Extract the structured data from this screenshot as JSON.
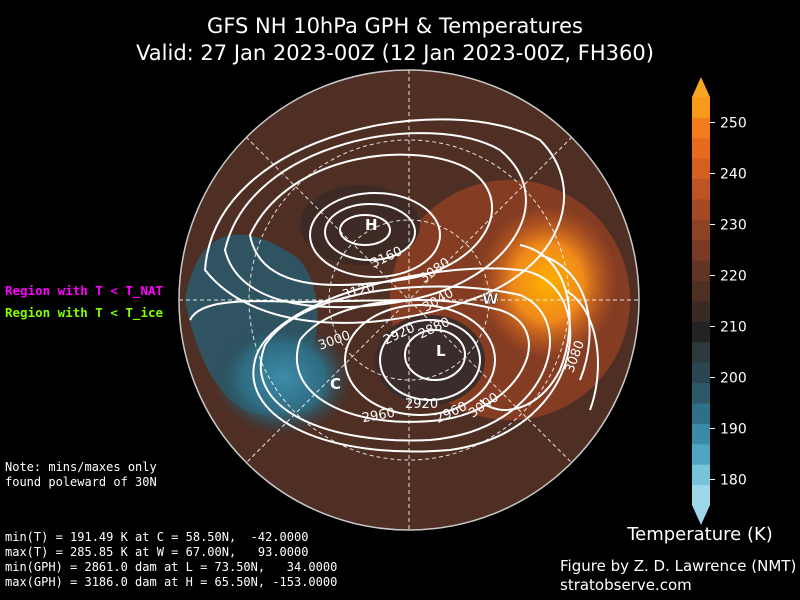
{
  "title": {
    "line1": "GFS NH 10hPa GPH & Temperatures",
    "line2": "Valid: 27 Jan 2023-00Z  (12 Jan 2023-00Z, FH360)"
  },
  "legend": {
    "nat": {
      "text": "Region with T < T_NAT",
      "color": "#ff00ff"
    },
    "ice": {
      "text": "Region with T < T_ice",
      "color": "#7fff00"
    }
  },
  "note": [
    "Note: mins/maxes only",
    "found poleward of 30N"
  ],
  "stats": [
    "min(T) = 191.49 K at C = 58.50N,  -42.0000",
    "max(T) = 285.85 K at W = 67.00N,   93.0000",
    "min(GPH) = 2861.0 dam at L = 73.50N,   34.0000",
    "max(GPH) = 3186.0 dam at H = 65.50N, -153.0000"
  ],
  "colorbar": {
    "label": "Temperature (K)",
    "ticks": [
      "180",
      "190",
      "200",
      "210",
      "220",
      "230",
      "240",
      "250"
    ],
    "min": 175,
    "max": 255,
    "colors": [
      "#9fd7ea",
      "#77c3db",
      "#4ea6c3",
      "#3b8aa6",
      "#2f6f87",
      "#2c5868",
      "#2b4650",
      "#2c3a3e",
      "#232323",
      "#3a2a25",
      "#4e2f24",
      "#633426",
      "#7a3a25",
      "#8e4225",
      "#a54a24",
      "#bd5423",
      "#d55f21",
      "#e96a1e",
      "#f57c1c",
      "#f99a1a"
    ],
    "arrow_top_color": "#f5a623",
    "arrow_bottom_color": "#9fd7ea"
  },
  "map": {
    "markers": [
      {
        "id": "H",
        "text": "H"
      },
      {
        "id": "L",
        "text": "L"
      },
      {
        "id": "W",
        "text": "W"
      },
      {
        "id": "C",
        "text": "C"
      }
    ],
    "contour_labels": [
      "3160",
      "3120",
      "3080",
      "3040",
      "3000",
      "2920",
      "2880",
      "2960",
      "2920",
      "2960",
      "3000",
      "3080"
    ]
  },
  "credit": {
    "line1": "Figure by Z. D. Lawrence (NMT)",
    "line2": "stratobserve.com"
  }
}
